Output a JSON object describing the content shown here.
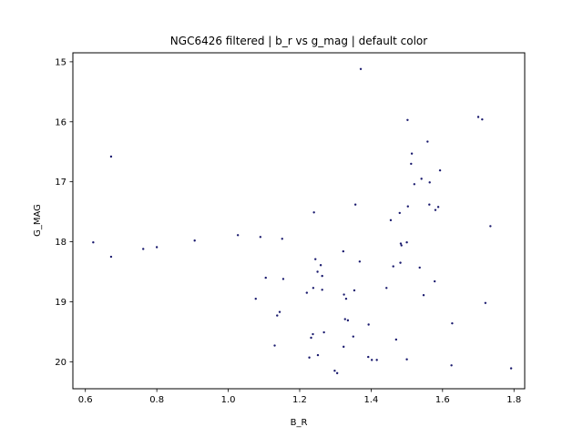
{
  "chart_data": {
    "type": "scatter",
    "title": "NGC6426 filtered | b_r vs g_mag | default color",
    "xlabel": "B_R",
    "ylabel": "G_MAG",
    "xlim": [
      0.565,
      1.83
    ],
    "ylim": [
      20.45,
      14.85
    ],
    "y_inverted": true,
    "xticks": [
      0.6,
      0.8,
      1.0,
      1.2,
      1.4,
      1.6,
      1.8
    ],
    "xtick_labels": [
      "0.6",
      "0.8",
      "1.0",
      "1.2",
      "1.4",
      "1.6",
      "1.8"
    ],
    "yticks": [
      15,
      16,
      17,
      18,
      19,
      20
    ],
    "ytick_labels": [
      "15",
      "16",
      "17",
      "18",
      "19",
      "20"
    ],
    "grid": false,
    "marker_color": "#1a1a6e",
    "series": [
      {
        "points": [
          [
            1.371,
            15.12
          ],
          [
            1.502,
            15.97
          ],
          [
            1.7,
            15.92
          ],
          [
            1.711,
            15.96
          ],
          [
            0.672,
            16.58
          ],
          [
            1.558,
            16.33
          ],
          [
            1.514,
            16.53
          ],
          [
            1.512,
            16.7
          ],
          [
            1.58,
            17.47
          ],
          [
            1.593,
            16.81
          ],
          [
            1.541,
            16.95
          ],
          [
            1.521,
            17.04
          ],
          [
            1.564,
            17.01
          ],
          [
            1.563,
            17.38
          ],
          [
            1.588,
            17.42
          ],
          [
            1.356,
            17.38
          ],
          [
            1.503,
            17.41
          ],
          [
            1.48,
            17.52
          ],
          [
            1.24,
            17.51
          ],
          [
            1.455,
            17.64
          ],
          [
            1.734,
            17.74
          ],
          [
            0.622,
            18.01
          ],
          [
            0.672,
            18.25
          ],
          [
            0.762,
            18.12
          ],
          [
            0.8,
            18.09
          ],
          [
            0.906,
            17.98
          ],
          [
            1.027,
            17.89
          ],
          [
            1.09,
            17.92
          ],
          [
            1.151,
            17.95
          ],
          [
            1.483,
            18.03
          ],
          [
            1.485,
            18.06
          ],
          [
            1.5,
            18.01
          ],
          [
            1.368,
            18.33
          ],
          [
            1.322,
            18.16
          ],
          [
            1.244,
            18.29
          ],
          [
            1.259,
            18.39
          ],
          [
            1.25,
            18.5
          ],
          [
            1.263,
            18.57
          ],
          [
            1.482,
            18.35
          ],
          [
            1.462,
            18.41
          ],
          [
            1.536,
            18.43
          ],
          [
            1.105,
            18.6
          ],
          [
            1.154,
            18.62
          ],
          [
            1.22,
            18.85
          ],
          [
            1.238,
            18.77
          ],
          [
            1.263,
            18.8
          ],
          [
            1.324,
            18.88
          ],
          [
            1.33,
            18.95
          ],
          [
            1.353,
            18.81
          ],
          [
            1.443,
            18.77
          ],
          [
            1.547,
            18.89
          ],
          [
            1.578,
            18.66
          ],
          [
            1.077,
            18.95
          ],
          [
            1.144,
            19.17
          ],
          [
            1.137,
            19.23
          ],
          [
            1.327,
            19.29
          ],
          [
            1.335,
            19.31
          ],
          [
            1.393,
            19.38
          ],
          [
            1.72,
            19.02
          ],
          [
            1.232,
            19.6
          ],
          [
            1.237,
            19.54
          ],
          [
            1.268,
            19.51
          ],
          [
            1.35,
            19.58
          ],
          [
            1.47,
            19.63
          ],
          [
            1.627,
            19.36
          ],
          [
            1.13,
            19.73
          ],
          [
            1.323,
            19.75
          ],
          [
            1.251,
            19.89
          ],
          [
            1.227,
            19.93
          ],
          [
            1.392,
            19.92
          ],
          [
            1.402,
            19.97
          ],
          [
            1.416,
            19.97
          ],
          [
            1.5,
            19.96
          ],
          [
            1.625,
            20.06
          ],
          [
            1.298,
            20.15
          ],
          [
            1.305,
            20.19
          ],
          [
            1.792,
            20.11
          ]
        ]
      }
    ]
  }
}
